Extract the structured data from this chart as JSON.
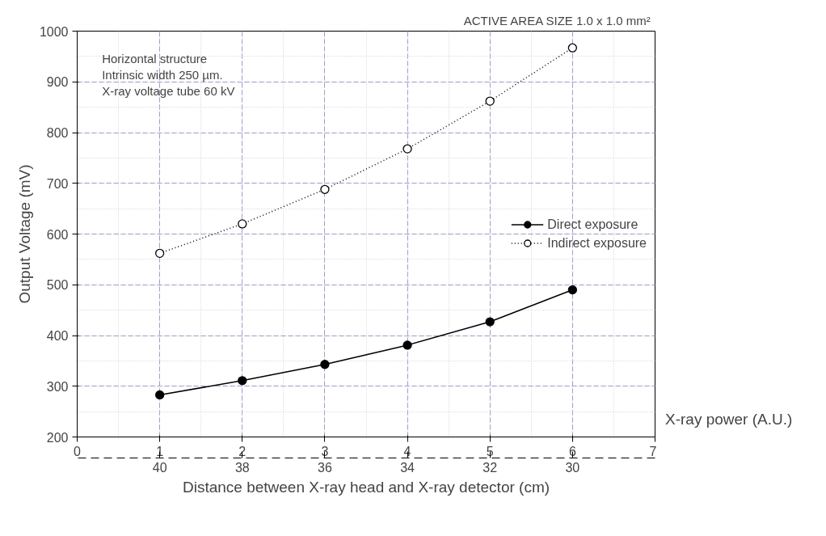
{
  "chart_data": {
    "type": "line",
    "title": "ACTIVE AREA SIZE 1.0  x 1.0 mm²",
    "annotations": [
      "Horizontal structure\nIntrinsic width 250 µm.\nX-ray voltage tube 60 kV"
    ],
    "xlabel": "X-ray power (A.U.)",
    "ylabel": "Output Voltage (mV)",
    "x2label": "Distance between X-ray head and X-ray detector (cm)",
    "x": [
      1,
      2,
      3,
      4,
      5,
      6
    ],
    "series": [
      {
        "name": "Direct exposure",
        "color": "#000000",
        "values": [
          283,
          311,
          343,
          381,
          427,
          490
        ],
        "line_style": "solid",
        "marker": "circle"
      },
      {
        "name": "Indirect exposure",
        "color": "#000000",
        "values": [
          562,
          620,
          688,
          768,
          862,
          967
        ],
        "line_style": "dotted",
        "marker": "circle"
      }
    ],
    "xlim": [
      0,
      7
    ],
    "xticks": [
      0,
      1,
      2,
      3,
      4,
      5,
      6,
      7
    ],
    "ylim": [
      200,
      1000
    ],
    "yticks": [
      200,
      300,
      400,
      500,
      600,
      700,
      800,
      900,
      1000
    ],
    "x2lim": [
      42,
      28
    ],
    "x2ticks": [
      40,
      38,
      36,
      34,
      32,
      30
    ],
    "grid": true,
    "legend": "right"
  }
}
